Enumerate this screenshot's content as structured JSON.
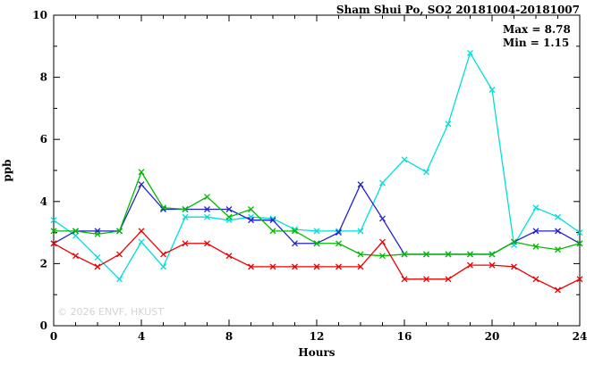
{
  "chart": {
    "title": "Sham Shui Po, SO2 20181004-20181007",
    "annotation": {
      "max": "Max = 8.78",
      "min": "Min = 1.15"
    },
    "ylabel": "ppb",
    "xlabel": "Hours",
    "watermark": "© 2026 ENVF, HKUST",
    "frame_color": "#000000",
    "background_color": "#ffffff"
  },
  "chart_data": {
    "type": "line",
    "title": "Sham Shui Po, SO2 20181004-20181007",
    "xlabel": "Hours",
    "ylabel": "ppb",
    "xlim": [
      0,
      24
    ],
    "ylim": [
      0,
      10
    ],
    "xticks": [
      0,
      4,
      8,
      12,
      16,
      20,
      24
    ],
    "yticks": [
      0,
      2,
      4,
      6,
      8,
      10
    ],
    "x_minor_step": 1,
    "y_minor_step": 1,
    "grid": false,
    "legend": "none",
    "marker": "x",
    "max_value": 8.78,
    "min_value": 1.15,
    "x": [
      0,
      1,
      2,
      3,
      4,
      5,
      6,
      7,
      8,
      9,
      10,
      11,
      12,
      13,
      14,
      15,
      16,
      17,
      18,
      19,
      20,
      21,
      22,
      23,
      24
    ],
    "series": [
      {
        "name": "series-cyan",
        "color": "#00dede",
        "values": [
          3.4,
          2.9,
          2.2,
          1.5,
          2.7,
          1.9,
          3.5,
          3.5,
          3.4,
          3.5,
          3.45,
          3.1,
          3.05,
          3.05,
          3.05,
          4.6,
          5.35,
          4.95,
          6.5,
          8.78,
          7.6,
          2.6,
          3.8,
          3.5,
          3.0
        ]
      },
      {
        "name": "series-blue",
        "color": "#2222cc",
        "values": [
          2.65,
          3.05,
          3.05,
          3.05,
          4.55,
          3.75,
          3.75,
          3.75,
          3.75,
          3.4,
          3.4,
          2.65,
          2.65,
          3.0,
          4.55,
          3.45,
          2.3,
          2.3,
          2.3,
          2.3,
          2.3,
          2.7,
          3.05,
          3.05,
          2.65
        ]
      },
      {
        "name": "series-green",
        "color": "#00bb00",
        "values": [
          3.05,
          3.05,
          2.95,
          3.05,
          4.95,
          3.8,
          3.75,
          4.15,
          3.5,
          3.75,
          3.05,
          3.05,
          2.65,
          2.65,
          2.3,
          2.25,
          2.3,
          2.3,
          2.3,
          2.3,
          2.3,
          2.7,
          2.55,
          2.45,
          2.65
        ]
      },
      {
        "name": "series-red",
        "color": "#ee0000",
        "values": [
          2.65,
          2.25,
          1.9,
          2.3,
          3.05,
          2.3,
          2.65,
          2.65,
          2.25,
          1.9,
          1.9,
          1.9,
          1.9,
          1.9,
          1.9,
          2.7,
          1.5,
          1.5,
          1.5,
          1.95,
          1.95,
          1.9,
          1.5,
          1.15,
          1.5
        ]
      }
    ]
  }
}
